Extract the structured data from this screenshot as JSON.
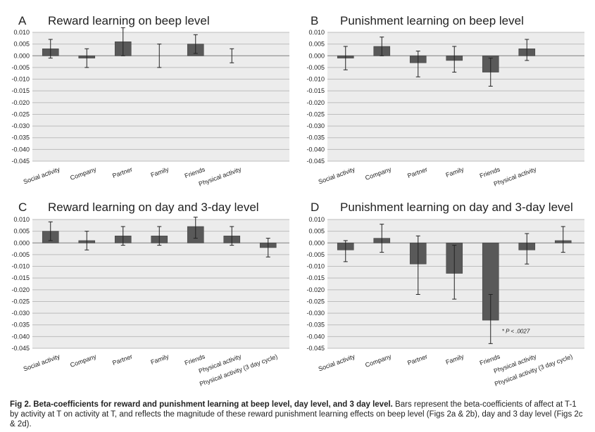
{
  "chart_data": [
    {
      "type": "bar",
      "panel_letter": "A",
      "title": "Reward learning on beep level",
      "categories": [
        "Social activity",
        "Company",
        "Partner",
        "Family",
        "Friends",
        "Physical activity"
      ],
      "values": [
        0.003,
        -0.001,
        0.006,
        0.0,
        0.005,
        0.0
      ],
      "error_low": [
        -0.001,
        -0.005,
        0.0,
        -0.005,
        0.001,
        -0.003
      ],
      "error_high": [
        0.007,
        0.003,
        0.012,
        0.005,
        0.009,
        0.003
      ],
      "ylim": [
        -0.045,
        0.01
      ],
      "yticks": [
        "0.010",
        "0.005",
        "0.000",
        "-0.005",
        "-0.010",
        "-0.015",
        "-0.020",
        "-0.025",
        "-0.030",
        "-0.035",
        "-0.040",
        "-0.045"
      ],
      "grid": true,
      "annotation": ""
    },
    {
      "type": "bar",
      "panel_letter": "B",
      "title": "Punishment learning on beep level",
      "categories": [
        "Social activity",
        "Company",
        "Partner",
        "Family",
        "Friends",
        "Physical activity"
      ],
      "values": [
        -0.001,
        0.004,
        -0.003,
        -0.002,
        -0.007,
        0.003
      ],
      "error_low": [
        -0.006,
        0.0,
        -0.009,
        -0.007,
        -0.013,
        -0.002
      ],
      "error_high": [
        0.004,
        0.008,
        0.002,
        0.004,
        -0.001,
        0.007
      ],
      "ylim": [
        -0.045,
        0.01
      ],
      "yticks": [
        "0.010",
        "0.005",
        "0.000",
        "-0.005",
        "-0.010",
        "-0.015",
        "-0.020",
        "-0.025",
        "-0.030",
        "-0.035",
        "-0.040",
        "-0.045"
      ],
      "grid": true,
      "annotation": ""
    },
    {
      "type": "bar",
      "panel_letter": "C",
      "title": "Reward learning on day and 3-day level",
      "categories": [
        "Social activity",
        "Company",
        "Partner",
        "Family",
        "Friends",
        "Physical activity",
        "Physical activity (3 day cycle)"
      ],
      "values": [
        0.005,
        0.001,
        0.003,
        0.003,
        0.007,
        0.003,
        -0.002
      ],
      "error_low": [
        0.001,
        -0.003,
        -0.001,
        -0.001,
        0.002,
        -0.001,
        -0.006
      ],
      "error_high": [
        0.009,
        0.005,
        0.007,
        0.007,
        0.011,
        0.007,
        0.002
      ],
      "ylim": [
        -0.045,
        0.01
      ],
      "yticks": [
        "0.010",
        "0.005",
        "0.000",
        "-0.005",
        "-0.010",
        "-0.015",
        "-0.020",
        "-0.025",
        "-0.030",
        "-0.035",
        "-0.040",
        "-0.045"
      ],
      "grid": true,
      "annotation": ""
    },
    {
      "type": "bar",
      "panel_letter": "D",
      "title": "Punishment learning on day and 3-day level",
      "categories": [
        "Social activity",
        "Company",
        "Partner",
        "Family",
        "Friends",
        "Physical activity",
        "Physical activity (3 day cycle)"
      ],
      "values": [
        -0.003,
        0.002,
        -0.009,
        -0.013,
        -0.033,
        -0.003,
        0.001
      ],
      "error_low": [
        -0.008,
        -0.004,
        -0.022,
        -0.024,
        -0.043,
        -0.009,
        -0.004
      ],
      "error_high": [
        0.001,
        0.008,
        0.003,
        -0.001,
        -0.022,
        0.004,
        0.007
      ],
      "ylim": [
        -0.045,
        0.01
      ],
      "yticks": [
        "0.010",
        "0.005",
        "0.000",
        "-0.005",
        "-0.010",
        "-0.015",
        "-0.020",
        "-0.025",
        "-0.030",
        "-0.035",
        "-0.040",
        "-0.045"
      ],
      "grid": true,
      "annotation": "* P < .0027",
      "annotation_category": "Friends"
    }
  ],
  "colors": {
    "bar": "#595959",
    "plot_background": "#ececec",
    "gridline": "#bdbdbd",
    "text": "#222222"
  },
  "caption": {
    "bold": "Fig 2. Beta-coefficients for reward and punishment learning at beep level, day level, and 3 day level.",
    "text": " Bars represent the beta-coefficients of affect at T-1 by activity at T on activity at T, and reflects the magnitude of these reward punishment learning effects on beep level (Figs 2a & 2b), day and 3 day level (Figs 2c & 2d)."
  }
}
